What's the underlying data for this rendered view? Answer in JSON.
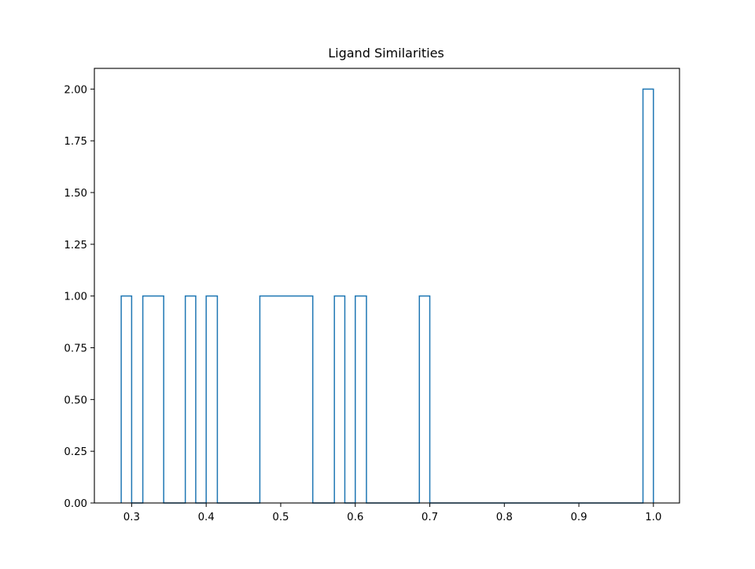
{
  "chart_data": {
    "type": "histogram-step",
    "title": "Ligand Similarities",
    "xlabel": "",
    "ylabel": "",
    "xlim": [
      0.25,
      1.035
    ],
    "ylim": [
      0,
      2.1
    ],
    "x_ticks": [
      0.3,
      0.4,
      0.5,
      0.6,
      0.7,
      0.8,
      0.9,
      1.0
    ],
    "x_tick_labels": [
      "0.3",
      "0.4",
      "0.5",
      "0.6",
      "0.7",
      "0.8",
      "0.9",
      "1.0"
    ],
    "y_ticks": [
      0,
      0.25,
      0.5,
      0.75,
      1.0,
      1.25,
      1.5,
      1.75,
      2.0
    ],
    "y_tick_labels": [
      "0.00",
      "0.25",
      "0.50",
      "0.75",
      "1.00",
      "1.25",
      "1.50",
      "1.75",
      "2.00"
    ],
    "bin_range": [
      0.286,
      1.0
    ],
    "bin_count": 50,
    "bins": [
      {
        "start": 0.286,
        "end": 0.3,
        "count": 1
      },
      {
        "start": 0.315,
        "end": 0.343,
        "count": 1
      },
      {
        "start": 0.372,
        "end": 0.386,
        "count": 1
      },
      {
        "start": 0.4,
        "end": 0.415,
        "count": 1
      },
      {
        "start": 0.472,
        "end": 0.543,
        "count": 1
      },
      {
        "start": 0.572,
        "end": 0.586,
        "count": 1
      },
      {
        "start": 0.6,
        "end": 0.615,
        "count": 1
      },
      {
        "start": 0.686,
        "end": 0.7,
        "count": 1
      },
      {
        "start": 0.986,
        "end": 1.0,
        "count": 2
      }
    ],
    "grid": false,
    "legend": "none",
    "colors": {
      "series": "#1f77b4",
      "axes": "#000000",
      "background": "#ffffff"
    }
  }
}
